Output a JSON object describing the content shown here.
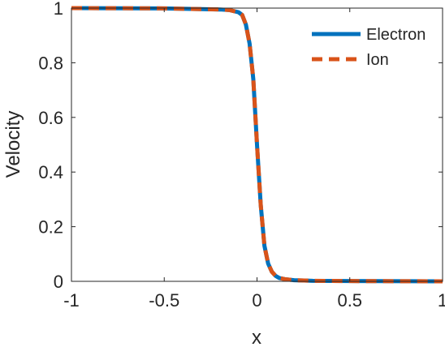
{
  "chart_data": {
    "type": "line",
    "xlabel": "x",
    "ylabel": "Velocity",
    "xlim": [
      -1,
      1
    ],
    "ylim": [
      0,
      1
    ],
    "x_ticks": [
      -1,
      -0.5,
      0,
      0.5,
      1
    ],
    "x_tick_labels": [
      "-1",
      "-0.5",
      "0",
      "0.5",
      "1"
    ],
    "y_ticks": [
      0,
      0.2,
      0.4,
      0.6,
      0.8,
      1
    ],
    "y_tick_labels": [
      "0",
      "0.2",
      "0.4",
      "0.6",
      "0.8",
      "1"
    ],
    "grid": false,
    "legend_position": "top-right",
    "series": [
      {
        "name": "Electron",
        "color": "#0072BD",
        "style": "solid",
        "x": [
          -1,
          -0.5,
          -0.2,
          -0.15,
          -0.1,
          -0.08,
          -0.06,
          -0.04,
          -0.02,
          0,
          0.02,
          0.04,
          0.06,
          0.08,
          0.1,
          0.12,
          0.15,
          0.2,
          0.3,
          0.5,
          1
        ],
        "y": [
          1.0,
          0.999,
          0.995,
          0.993,
          0.985,
          0.975,
          0.94,
          0.87,
          0.74,
          0.5,
          0.28,
          0.13,
          0.065,
          0.035,
          0.02,
          0.012,
          0.008,
          0.004,
          0.002,
          0.001,
          0.0
        ]
      },
      {
        "name": "Ion",
        "color": "#D95319",
        "style": "dashed",
        "x": [
          -1,
          -0.5,
          -0.2,
          -0.15,
          -0.1,
          -0.08,
          -0.06,
          -0.04,
          -0.02,
          0,
          0.02,
          0.04,
          0.06,
          0.08,
          0.1,
          0.12,
          0.15,
          0.2,
          0.3,
          0.5,
          1
        ],
        "y": [
          1.0,
          0.999,
          0.995,
          0.993,
          0.985,
          0.975,
          0.94,
          0.87,
          0.74,
          0.5,
          0.28,
          0.13,
          0.065,
          0.035,
          0.02,
          0.012,
          0.008,
          0.004,
          0.002,
          0.001,
          0.0
        ]
      }
    ]
  }
}
